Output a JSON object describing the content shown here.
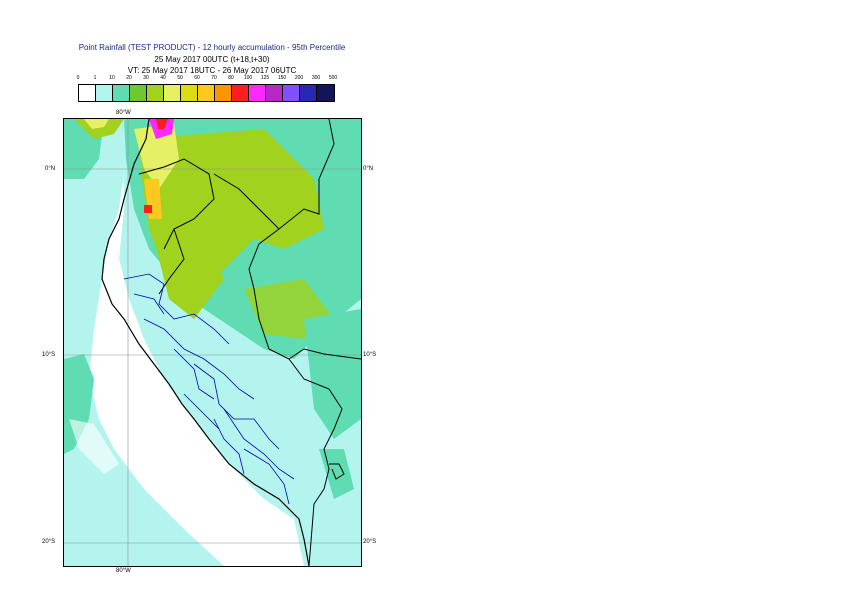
{
  "title": {
    "line1": "Point Rainfall (TEST PRODUCT) - 12 hourly accumulation - 95th Percentile",
    "line2": "25 May 2017 00UTC (t+18,t+30)",
    "line3": "VT: 25 May 2017 18UTC - 26 May 2017 06UTC"
  },
  "legend": {
    "thresholds": [
      "0",
      "1",
      "10",
      "20",
      "30",
      "40",
      "50",
      "60",
      "70",
      "80",
      "100",
      "125",
      "150",
      "200",
      "300",
      "500"
    ],
    "colors": [
      "#ffffff",
      "#b4f4ef",
      "#5fdcb2",
      "#6ec832",
      "#a0d21e",
      "#e6f064",
      "#dcdc14",
      "#ffc81e",
      "#ff9600",
      "#ff1e1e",
      "#ff28ff",
      "#b428c8",
      "#8250ff",
      "#2828b4",
      "#14145a"
    ]
  },
  "axes": {
    "lon_top": "80°W",
    "lon_bottom": "80°W",
    "lat_left": [
      "0°N",
      "10°S",
      "20°S"
    ],
    "lat_right": [
      "0°N",
      "10°S",
      "20°S"
    ]
  },
  "colors": {
    "sea_rain": "#b4f4ef",
    "land_light": "#b4f4ef",
    "land_mid": "#5fdcb2",
    "land_green": "#a0d21e",
    "land_yellow": "#e6f064",
    "coast": "#000000",
    "borders": "#0000b4",
    "gridline": "#909090"
  }
}
